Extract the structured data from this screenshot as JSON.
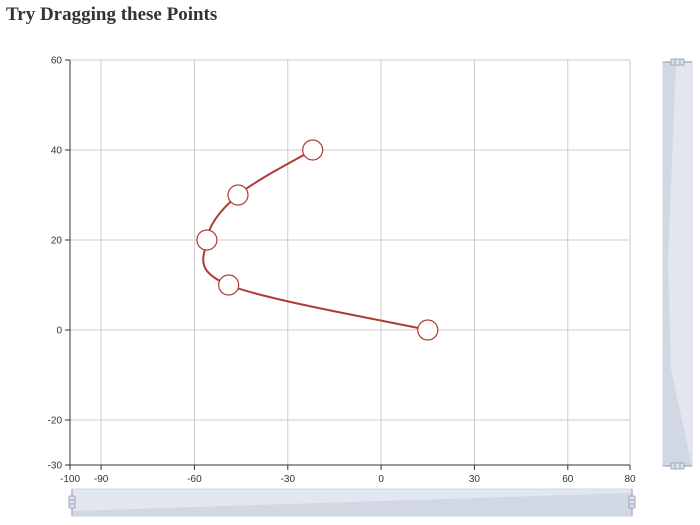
{
  "page": {
    "title": "Try Dragging these Points"
  },
  "chart_data": {
    "type": "line",
    "xlim": [
      -100,
      80
    ],
    "ylim": [
      -30,
      60
    ],
    "xticks": [
      -100,
      -90,
      -60,
      -30,
      0,
      30,
      60,
      80
    ],
    "yticks": [
      -30,
      -20,
      0,
      20,
      40,
      60
    ],
    "grid": true,
    "smooth": true,
    "series": [
      {
        "points": [
          {
            "x": 15,
            "y": 0
          },
          {
            "x": -49,
            "y": 10
          },
          {
            "x": -56,
            "y": 20
          },
          {
            "x": -46,
            "y": 30
          },
          {
            "x": -22,
            "y": 40
          }
        ],
        "color": "#b03a34"
      }
    ],
    "dataZoom": {
      "x": {
        "start": 0,
        "end": 100
      },
      "y": {
        "start": 0,
        "end": 100
      }
    }
  }
}
